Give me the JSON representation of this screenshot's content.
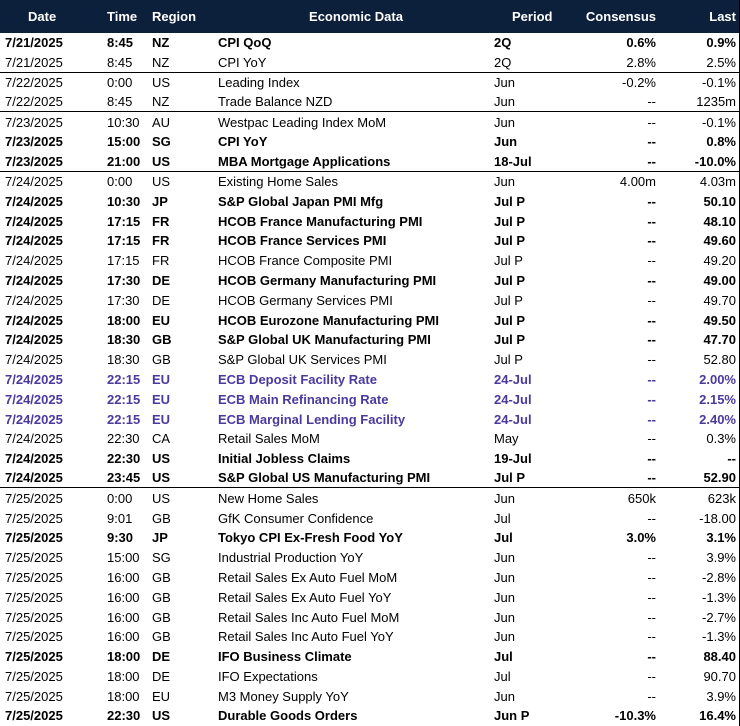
{
  "header": [
    "Date",
    "Time",
    "Region",
    "Economic Data",
    "Period",
    "Consensus",
    "Last"
  ],
  "colors": {
    "header_bg": "#0c1f3b",
    "highlight": "#4a3a9e"
  },
  "rows": [
    {
      "date": "7/21/2025",
      "time": "8:45",
      "region": "NZ",
      "event": "CPI QoQ",
      "period": "2Q",
      "consensus": "0.6%",
      "last": "0.9%",
      "bold": true
    },
    {
      "date": "7/21/2025",
      "time": "8:45",
      "region": "NZ",
      "event": "CPI YoY",
      "period": "2Q",
      "consensus": "2.8%",
      "last": "2.5%",
      "sep": true
    },
    {
      "date": "7/22/2025",
      "time": "0:00",
      "region": "US",
      "event": "Leading Index",
      "period": "Jun",
      "consensus": "-0.2%",
      "last": "-0.1%"
    },
    {
      "date": "7/22/2025",
      "time": "8:45",
      "region": "NZ",
      "event": "Trade Balance NZD",
      "period": "Jun",
      "consensus": "--",
      "last": "1235m",
      "sep": true
    },
    {
      "date": "7/23/2025",
      "time": "10:30",
      "region": "AU",
      "event": "Westpac Leading Index MoM",
      "period": "Jun",
      "consensus": "--",
      "last": "-0.1%"
    },
    {
      "date": "7/23/2025",
      "time": "15:00",
      "region": "SG",
      "event": "CPI YoY",
      "period": "Jun",
      "consensus": "--",
      "last": "0.8%",
      "bold": true
    },
    {
      "date": "7/23/2025",
      "time": "21:00",
      "region": "US",
      "event": "MBA Mortgage Applications",
      "period": "18-Jul",
      "consensus": "--",
      "last": "-10.0%",
      "bold": true,
      "sep": true
    },
    {
      "date": "7/24/2025",
      "time": "0:00",
      "region": "US",
      "event": "Existing Home Sales",
      "period": "Jun",
      "consensus": "4.00m",
      "last": "4.03m"
    },
    {
      "date": "7/24/2025",
      "time": "10:30",
      "region": "JP",
      "event": "S&P Global Japan PMI Mfg",
      "period": "Jul P",
      "consensus": "--",
      "last": "50.10",
      "bold": true
    },
    {
      "date": "7/24/2025",
      "time": "17:15",
      "region": "FR",
      "event": "HCOB France Manufacturing PMI",
      "period": "Jul P",
      "consensus": "--",
      "last": "48.10",
      "bold": true
    },
    {
      "date": "7/24/2025",
      "time": "17:15",
      "region": "FR",
      "event": "HCOB France Services PMI",
      "period": "Jul P",
      "consensus": "--",
      "last": "49.60",
      "bold": true
    },
    {
      "date": "7/24/2025",
      "time": "17:15",
      "region": "FR",
      "event": "HCOB France Composite PMI",
      "period": "Jul P",
      "consensus": "--",
      "last": "49.20"
    },
    {
      "date": "7/24/2025",
      "time": "17:30",
      "region": "DE",
      "event": "HCOB Germany Manufacturing PMI",
      "period": "Jul P",
      "consensus": "--",
      "last": "49.00",
      "bold": true
    },
    {
      "date": "7/24/2025",
      "time": "17:30",
      "region": "DE",
      "event": "HCOB Germany Services PMI",
      "period": "Jul P",
      "consensus": "--",
      "last": "49.70"
    },
    {
      "date": "7/24/2025",
      "time": "18:00",
      "region": "EU",
      "event": "HCOB Eurozone Manufacturing PMI",
      "period": "Jul P",
      "consensus": "--",
      "last": "49.50",
      "bold": true
    },
    {
      "date": "7/24/2025",
      "time": "18:30",
      "region": "GB",
      "event": "S&P Global UK Manufacturing PMI",
      "period": "Jul P",
      "consensus": "--",
      "last": "47.70",
      "bold": true
    },
    {
      "date": "7/24/2025",
      "time": "18:30",
      "region": "GB",
      "event": "S&P Global UK Services PMI",
      "period": "Jul P",
      "consensus": "--",
      "last": "52.80"
    },
    {
      "date": "7/24/2025",
      "time": "22:15",
      "region": "EU",
      "event": "ECB Deposit Facility Rate",
      "period": "24-Jul",
      "consensus": "--",
      "last": "2.00%",
      "bold": true,
      "highlight": true
    },
    {
      "date": "7/24/2025",
      "time": "22:15",
      "region": "EU",
      "event": "ECB Main Refinancing Rate",
      "period": "24-Jul",
      "consensus": "--",
      "last": "2.15%",
      "bold": true,
      "highlight": true
    },
    {
      "date": "7/24/2025",
      "time": "22:15",
      "region": "EU",
      "event": "ECB Marginal Lending Facility",
      "period": "24-Jul",
      "consensus": "--",
      "last": "2.40%",
      "bold": true,
      "highlight": true
    },
    {
      "date": "7/24/2025",
      "time": "22:30",
      "region": "CA",
      "event": "Retail Sales MoM",
      "period": "May",
      "consensus": "--",
      "last": "0.3%"
    },
    {
      "date": "7/24/2025",
      "time": "22:30",
      "region": "US",
      "event": "Initial Jobless Claims",
      "period": "19-Jul",
      "consensus": "--",
      "last": "--",
      "bold": true
    },
    {
      "date": "7/24/2025",
      "time": "23:45",
      "region": "US",
      "event": "S&P Global US Manufacturing PMI",
      "period": "Jul P",
      "consensus": "--",
      "last": "52.90",
      "bold": true,
      "sep": true
    },
    {
      "date": "7/25/2025",
      "time": "0:00",
      "region": "US",
      "event": "New Home Sales",
      "period": "Jun",
      "consensus": "650k",
      "last": "623k"
    },
    {
      "date": "7/25/2025",
      "time": "9:01",
      "region": "GB",
      "event": "GfK Consumer Confidence",
      "period": "Jul",
      "consensus": "--",
      "last": "-18.00"
    },
    {
      "date": "7/25/2025",
      "time": "9:30",
      "region": "JP",
      "event": "Tokyo CPI Ex-Fresh Food YoY",
      "period": "Jul",
      "consensus": "3.0%",
      "last": "3.1%",
      "bold": true
    },
    {
      "date": "7/25/2025",
      "time": "15:00",
      "region": "SG",
      "event": "Industrial Production YoY",
      "period": "Jun",
      "consensus": "--",
      "last": "3.9%"
    },
    {
      "date": "7/25/2025",
      "time": "16:00",
      "region": "GB",
      "event": "Retail Sales Ex Auto Fuel MoM",
      "period": "Jun",
      "consensus": "--",
      "last": "-2.8%"
    },
    {
      "date": "7/25/2025",
      "time": "16:00",
      "region": "GB",
      "event": "Retail Sales Ex Auto Fuel YoY",
      "period": "Jun",
      "consensus": "--",
      "last": "-1.3%"
    },
    {
      "date": "7/25/2025",
      "time": "16:00",
      "region": "GB",
      "event": "Retail Sales Inc Auto Fuel MoM",
      "period": "Jun",
      "consensus": "--",
      "last": "-2.7%"
    },
    {
      "date": "7/25/2025",
      "time": "16:00",
      "region": "GB",
      "event": "Retail Sales Inc Auto Fuel YoY",
      "period": "Jun",
      "consensus": "--",
      "last": "-1.3%"
    },
    {
      "date": "7/25/2025",
      "time": "18:00",
      "region": "DE",
      "event": "IFO Business Climate",
      "period": "Jul",
      "consensus": "--",
      "last": "88.40",
      "bold": true
    },
    {
      "date": "7/25/2025",
      "time": "18:00",
      "region": "DE",
      "event": "IFO Expectations",
      "period": "Jul",
      "consensus": "--",
      "last": "90.70"
    },
    {
      "date": "7/25/2025",
      "time": "18:00",
      "region": "EU",
      "event": "M3 Money Supply YoY",
      "period": "Jun",
      "consensus": "--",
      "last": "3.9%"
    },
    {
      "date": "7/25/2025",
      "time": "22:30",
      "region": "US",
      "event": "Durable Goods Orders",
      "period": "Jun P",
      "consensus": "-10.3%",
      "last": "16.4%",
      "bold": true
    }
  ]
}
